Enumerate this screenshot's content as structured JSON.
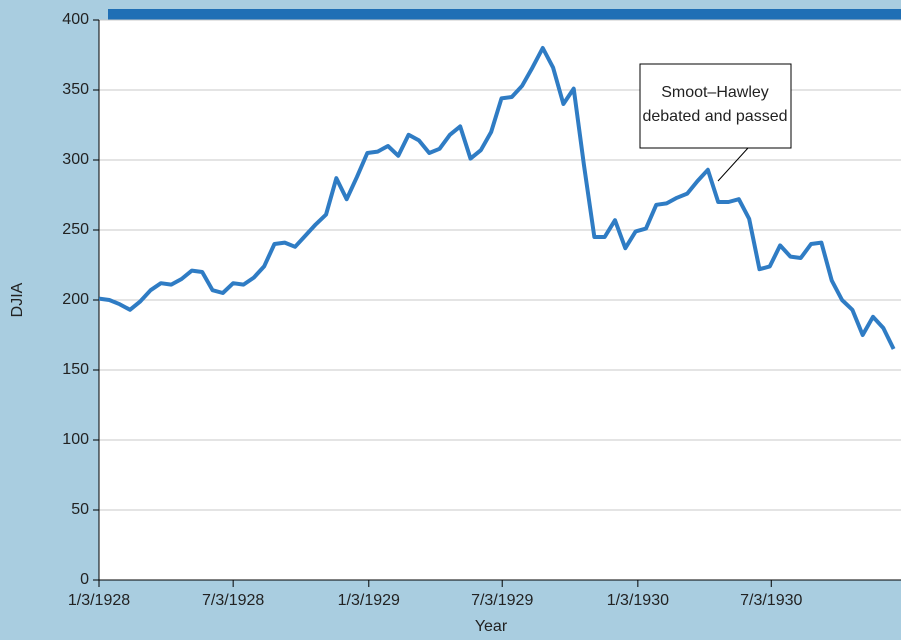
{
  "chart_data": {
    "type": "line",
    "xlabel": "Year",
    "ylabel": "DJIA",
    "x": [
      "1928-01-03",
      "1928-01-17",
      "1928-01-31",
      "1928-02-14",
      "1928-02-28",
      "1928-03-13",
      "1928-03-27",
      "1928-04-10",
      "1928-04-24",
      "1928-05-08",
      "1928-05-22",
      "1928-06-05",
      "1928-06-19",
      "1928-07-03",
      "1928-07-17",
      "1928-07-31",
      "1928-08-14",
      "1928-08-28",
      "1928-09-11",
      "1928-09-25",
      "1928-10-09",
      "1928-10-23",
      "1928-11-06",
      "1928-11-20",
      "1928-12-04",
      "1928-12-18",
      "1929-01-01",
      "1929-01-15",
      "1929-01-29",
      "1929-02-12",
      "1929-02-26",
      "1929-03-12",
      "1929-03-26",
      "1929-04-09",
      "1929-04-23",
      "1929-05-07",
      "1929-05-21",
      "1929-06-04",
      "1929-06-18",
      "1929-07-02",
      "1929-07-16",
      "1929-07-30",
      "1929-08-13",
      "1929-08-27",
      "1929-09-10",
      "1929-09-24",
      "1929-10-08",
      "1929-10-22",
      "1929-11-05",
      "1929-11-19",
      "1929-12-03",
      "1929-12-17",
      "1929-12-31",
      "1930-01-14",
      "1930-01-28",
      "1930-02-11",
      "1930-02-25",
      "1930-03-11",
      "1930-03-25",
      "1930-04-08",
      "1930-04-22",
      "1930-05-06",
      "1930-05-20",
      "1930-06-03",
      "1930-06-17",
      "1930-07-01",
      "1930-07-15",
      "1930-07-29",
      "1930-08-12",
      "1930-08-26",
      "1930-09-09",
      "1930-09-23",
      "1930-10-07",
      "1930-10-21",
      "1930-11-04",
      "1930-11-18",
      "1930-12-02",
      "1930-12-16"
    ],
    "series": [
      {
        "name": "DJIA",
        "color": "#2f7cc4",
        "values": [
          201,
          200,
          197,
          193,
          199,
          207,
          212,
          211,
          215,
          221,
          220,
          207,
          205,
          212,
          211,
          216,
          224,
          240,
          241,
          238,
          246,
          254,
          261,
          287,
          272,
          288,
          305,
          306,
          310,
          303,
          318,
          314,
          305,
          308,
          318,
          324,
          301,
          307,
          320,
          344,
          345,
          353,
          366,
          380,
          366,
          340,
          351,
          296,
          245,
          245,
          257,
          237,
          249,
          251,
          268,
          269,
          273,
          276,
          285,
          293,
          270,
          270,
          272,
          258,
          222,
          224,
          239,
          231,
          230,
          240,
          241,
          214,
          200,
          193,
          175,
          188,
          180,
          165
        ]
      }
    ],
    "xlim": [
      "1928-01-03",
      "1930-12-26"
    ],
    "xticks": [
      {
        "value": "1928-01-03",
        "label": "1/3/1928"
      },
      {
        "value": "1928-07-03",
        "label": "7/3/1928"
      },
      {
        "value": "1929-01-03",
        "label": "1/3/1929"
      },
      {
        "value": "1929-07-03",
        "label": "7/3/1929"
      },
      {
        "value": "1930-01-03",
        "label": "1/3/1930"
      },
      {
        "value": "1930-07-03",
        "label": "7/3/1930"
      }
    ],
    "ylim": [
      0,
      400
    ],
    "yticks": [
      0,
      50,
      100,
      150,
      200,
      250,
      300,
      350,
      400
    ],
    "grid": true,
    "annotation": {
      "text": [
        "Smoot–Hawley",
        "debated and passed"
      ]
    }
  }
}
